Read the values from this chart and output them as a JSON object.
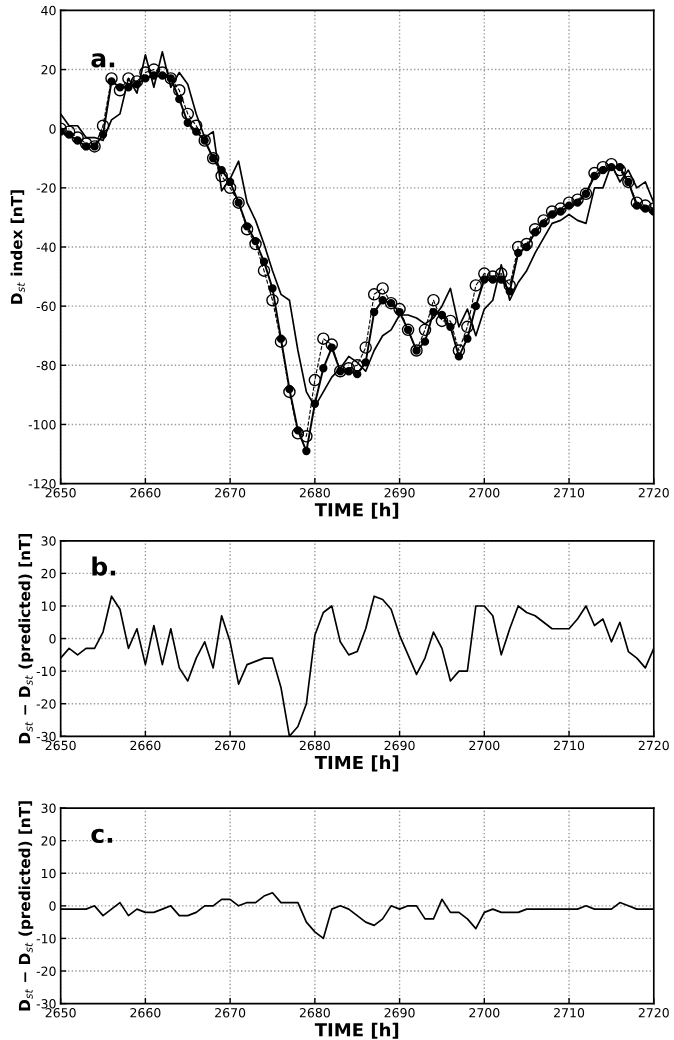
{
  "chart_data": [
    {
      "type": "line",
      "xlabel": "TIME [h]",
      "ylabel": "D$_{st}$ index [nT]",
      "annotations": [
        "a."
      ],
      "x": [
        2650,
        2651,
        2652,
        2653,
        2654,
        2655,
        2656,
        2657,
        2658,
        2659,
        2660,
        2661,
        2662,
        2663,
        2664,
        2665,
        2666,
        2667,
        2668,
        2669,
        2670,
        2671,
        2672,
        2673,
        2674,
        2675,
        2676,
        2677,
        2678,
        2679,
        2680,
        2681,
        2682,
        2683,
        2684,
        2685,
        2686,
        2687,
        2688,
        2689,
        2690,
        2691,
        2692,
        2693,
        2694,
        2695,
        2696,
        2697,
        2698,
        2699,
        2700,
        2701,
        2702,
        2703,
        2704,
        2705,
        2706,
        2707,
        2708,
        2709,
        2710,
        2711,
        2712,
        2713,
        2714,
        2715,
        2716,
        2717,
        2718,
        2719,
        2720
      ],
      "series": [
        {
          "color": "#000000",
          "marker": "circle",
          "line_style": "solid",
          "values": [
            -1,
            -2,
            -4,
            -6,
            -6,
            -2,
            16,
            14,
            14,
            15,
            17,
            18,
            18,
            17,
            10,
            2,
            -1,
            -4,
            -10,
            -14,
            -18,
            -25,
            -33,
            -38,
            -45,
            -54,
            -71,
            -88,
            -102,
            -109,
            -93,
            -81,
            -74,
            -82,
            -82,
            -83,
            -79,
            -62,
            -58,
            -59,
            -62,
            -68,
            -75,
            -72,
            -62,
            -63,
            -67,
            -77,
            -71,
            -60,
            -51,
            -51,
            -51,
            -55,
            -42,
            -40,
            -35,
            -32,
            -29,
            -28,
            -26,
            -25,
            -22,
            -16,
            -14,
            -13,
            -13,
            -18,
            -26,
            -27,
            -28
          ]
        },
        {
          "color": "#000000",
          "marker": "circle",
          "line_style": "dashed",
          "values": [
            0,
            -1,
            -3,
            -5,
            -6,
            1,
            17,
            13,
            17,
            16,
            19,
            20,
            19,
            17,
            13,
            5,
            1,
            -4,
            -10,
            -16,
            -20,
            -25,
            -34,
            -39,
            -48,
            -58,
            -72,
            -89,
            -103,
            -104,
            -85,
            -71,
            -73,
            -82,
            -81,
            -80,
            -74,
            -56,
            -54,
            -59,
            -61,
            -68,
            -75,
            -68,
            -58,
            -65,
            -65,
            -75,
            -67,
            -53,
            -49,
            -50,
            -49,
            -53,
            -40,
            -39,
            -34,
            -31,
            -28,
            -27,
            -25,
            -24,
            -22,
            -15,
            -13,
            -12,
            -14,
            -18,
            -25,
            -26,
            -27
          ]
        },
        {
          "color": "#000000",
          "marker": "none",
          "line_style": "solid",
          "values": [
            5,
            1,
            1,
            -3,
            -3,
            -4,
            3,
            5,
            17,
            12,
            25,
            14,
            26,
            14,
            19,
            15,
            5,
            -3,
            -1,
            -21,
            -17,
            -11,
            -25,
            -31,
            -39,
            -48,
            -56,
            -58,
            -75,
            -89,
            -94,
            -89,
            -84,
            -81,
            -77,
            -79,
            -82,
            -75,
            -70,
            -68,
            -63,
            -63,
            -64,
            -66,
            -64,
            -60,
            -54,
            -67,
            -61,
            -70,
            -61,
            -58,
            -46,
            -58,
            -52,
            -48,
            -42,
            -37,
            -32,
            -31,
            -29,
            -31,
            -32,
            -20,
            -20,
            -12,
            -18,
            -14,
            -20,
            -18,
            -25
          ]
        }
      ],
      "xlim": [
        2650,
        2720
      ],
      "xticks": [
        2650,
        2660,
        2670,
        2680,
        2690,
        2700,
        2710,
        2720
      ],
      "ylim": [
        -120,
        40
      ],
      "yticks": [
        -120,
        -100,
        -80,
        -60,
        -40,
        -20,
        0,
        20,
        40
      ],
      "grid": true
    },
    {
      "type": "line",
      "xlabel": "TIME [h]",
      "ylabel": "D$_{st}$ − D$_{st}$ (predicted) [nT]",
      "annotations": [
        "b."
      ],
      "x": [
        2650,
        2651,
        2652,
        2653,
        2654,
        2655,
        2656,
        2657,
        2658,
        2659,
        2660,
        2661,
        2662,
        2663,
        2664,
        2665,
        2666,
        2667,
        2668,
        2669,
        2670,
        2671,
        2672,
        2673,
        2674,
        2675,
        2676,
        2677,
        2678,
        2679,
        2680,
        2681,
        2682,
        2683,
        2684,
        2685,
        2686,
        2687,
        2688,
        2689,
        2690,
        2691,
        2692,
        2693,
        2694,
        2695,
        2696,
        2697,
        2698,
        2699,
        2700,
        2701,
        2702,
        2703,
        2704,
        2705,
        2706,
        2707,
        2708,
        2709,
        2710,
        2711,
        2712,
        2713,
        2714,
        2715,
        2716,
        2717,
        2718,
        2719,
        2720
      ],
      "series": [
        {
          "color": "#000000",
          "marker": "none",
          "line_style": "solid",
          "values": [
            -6,
            -3,
            -5,
            -3,
            -3,
            2,
            13,
            9,
            -3,
            3,
            -8,
            4,
            -8,
            3,
            -9,
            -13,
            -6,
            -1,
            -9,
            7,
            -1,
            -14,
            -8,
            -7,
            -6,
            -6,
            -15,
            -30,
            -27,
            -20,
            1,
            8,
            10,
            -1,
            -5,
            -4,
            3,
            13,
            12,
            9,
            1,
            -5,
            -11,
            -6,
            2,
            -3,
            -13,
            -10,
            -10,
            10,
            10,
            7,
            -5,
            3,
            10,
            8,
            7,
            5,
            3,
            3,
            3,
            6,
            10,
            4,
            6,
            -1,
            5,
            -4,
            -6,
            -9,
            -3
          ]
        }
      ],
      "xlim": [
        2650,
        2720
      ],
      "xticks": [
        2650,
        2660,
        2670,
        2680,
        2690,
        2700,
        2710,
        2720
      ],
      "ylim": [
        -30,
        30
      ],
      "yticks": [
        -30,
        -20,
        -10,
        0,
        10,
        20,
        30
      ],
      "grid": true
    },
    {
      "type": "line",
      "xlabel": "TIME [h]",
      "ylabel": "D$_{st}$ − D$_{st}$ (predicted) [nT]",
      "annotations": [
        "c."
      ],
      "x": [
        2650,
        2651,
        2652,
        2653,
        2654,
        2655,
        2656,
        2657,
        2658,
        2659,
        2660,
        2661,
        2662,
        2663,
        2664,
        2665,
        2666,
        2667,
        2668,
        2669,
        2670,
        2671,
        2672,
        2673,
        2674,
        2675,
        2676,
        2677,
        2678,
        2679,
        2680,
        2681,
        2682,
        2683,
        2684,
        2685,
        2686,
        2687,
        2688,
        2689,
        2690,
        2691,
        2692,
        2693,
        2694,
        2695,
        2696,
        2697,
        2698,
        2699,
        2700,
        2701,
        2702,
        2703,
        2704,
        2705,
        2706,
        2707,
        2708,
        2709,
        2710,
        2711,
        2712,
        2713,
        2714,
        2715,
        2716,
        2717,
        2718,
        2719,
        2720
      ],
      "series": [
        {
          "color": "#000000",
          "marker": "none",
          "line_style": "solid",
          "values": [
            -1,
            -1,
            -1,
            -1,
            0,
            -3,
            -1,
            1,
            -3,
            -1,
            -2,
            -2,
            -1,
            0,
            -3,
            -3,
            -2,
            0,
            0,
            2,
            2,
            0,
            1,
            1,
            3,
            4,
            1,
            1,
            1,
            -5,
            -8,
            -10,
            -1,
            0,
            -1,
            -3,
            -5,
            -6,
            -4,
            0,
            -1,
            0,
            0,
            -4,
            -4,
            2,
            -2,
            -2,
            -4,
            -7,
            -2,
            -1,
            -2,
            -2,
            -2,
            -1,
            -1,
            -1,
            -1,
            -1,
            -1,
            -1,
            0,
            -1,
            -1,
            -1,
            1,
            0,
            -1,
            -1,
            -1
          ]
        }
      ],
      "xlim": [
        2650,
        2720
      ],
      "xticks": [
        2650,
        2660,
        2670,
        2680,
        2690,
        2700,
        2710,
        2720
      ],
      "ylim": [
        -30,
        30
      ],
      "yticks": [
        -30,
        -20,
        -10,
        0,
        10,
        20,
        30
      ],
      "grid": true
    }
  ]
}
